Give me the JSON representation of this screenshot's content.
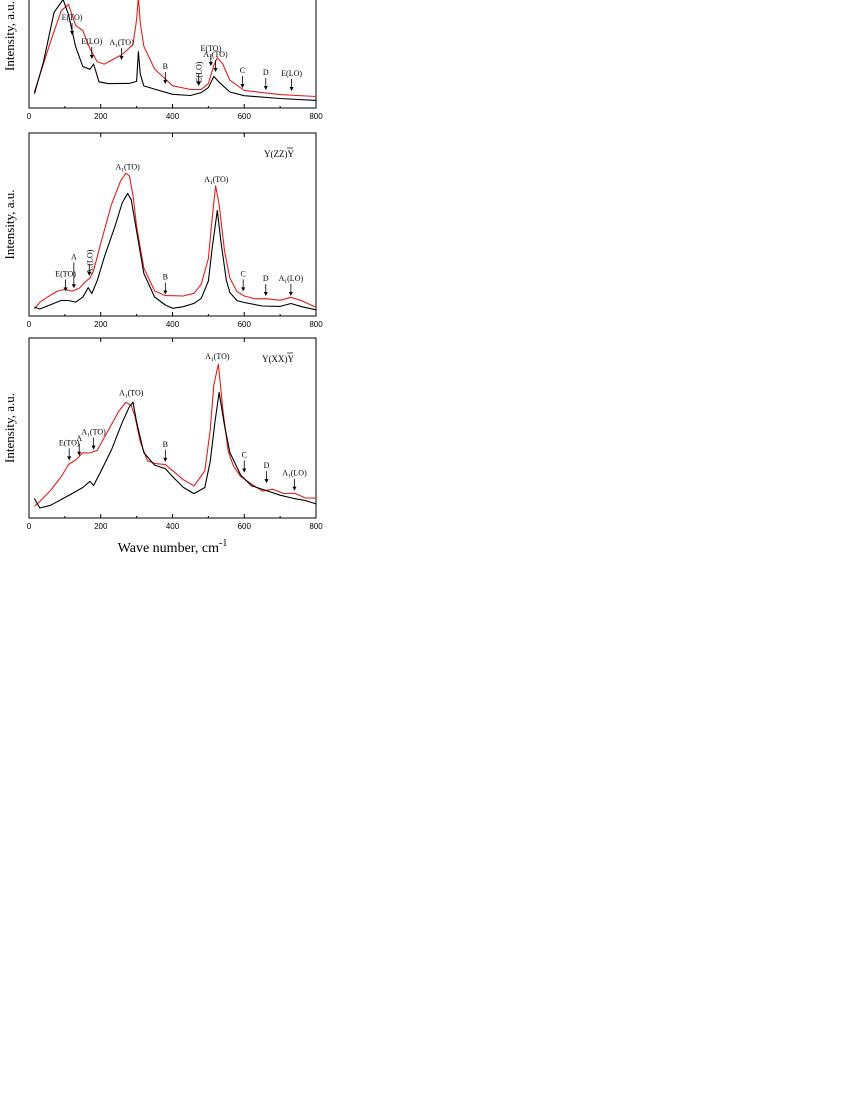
{
  "figure": {
    "xlabel_main": "Wave number, cm",
    "xlabel_sup": "-1",
    "colors": {
      "red": "#e0201f",
      "black": "#000000"
    }
  },
  "chart_data": [
    {
      "type": "line",
      "geometry": "",
      "ylabel": "Intensity, a.u.",
      "xlim": [
        0,
        800
      ],
      "xticks": [
        0,
        200,
        400,
        600,
        800
      ],
      "series": [
        {
          "color": "#e0201f",
          "x": [
            15,
            60,
            90,
            110,
            130,
            150,
            170,
            190,
            210,
            260,
            290,
            300,
            305,
            310,
            320,
            350,
            400,
            450,
            480,
            500,
            515,
            525,
            540,
            560,
            600,
            650,
            700,
            800
          ],
          "y": [
            0.12,
            0.62,
            0.93,
            0.99,
            0.78,
            0.73,
            0.55,
            0.42,
            0.4,
            0.5,
            0.6,
            0.85,
            1.08,
            0.82,
            0.58,
            0.35,
            0.18,
            0.14,
            0.14,
            0.2,
            0.38,
            0.46,
            0.4,
            0.24,
            0.14,
            0.12,
            0.1,
            0.08
          ]
        },
        {
          "color": "#000000",
          "x": [
            15,
            40,
            70,
            95,
            110,
            130,
            150,
            170,
            180,
            195,
            220,
            280,
            300,
            305,
            310,
            320,
            350,
            400,
            450,
            480,
            500,
            515,
            530,
            560,
            600,
            700,
            800
          ],
          "y": [
            0.1,
            0.42,
            0.92,
            1.05,
            0.9,
            0.58,
            0.38,
            0.35,
            0.4,
            0.22,
            0.2,
            0.2,
            0.22,
            0.52,
            0.3,
            0.18,
            0.15,
            0.1,
            0.09,
            0.12,
            0.17,
            0.28,
            0.22,
            0.12,
            0.08,
            0.05,
            0.03
          ]
        }
      ],
      "annotations": [
        {
          "text": "E(TO)",
          "x": 120,
          "arrow_y": 0.67
        },
        {
          "text": "E(LO)",
          "x": 175,
          "arrow_y": 0.43
        },
        {
          "text": "A",
          "sub": "1",
          "suffix": "(TO)",
          "x": 258,
          "arrow_y": 0.42
        },
        {
          "text": "B",
          "x": 380,
          "arrow_y": 0.18
        },
        {
          "text": "E(LO)",
          "x": 473,
          "arrow_y": 0.16,
          "vertical": true
        },
        {
          "text": "E(TO)",
          "x": 507,
          "arrow_y": 0.36
        },
        {
          "text": "A",
          "sub": "1",
          "suffix": "(TO)",
          "x": 520,
          "arrow_y": 0.3
        },
        {
          "text": "C",
          "x": 595,
          "arrow_y": 0.14
        },
        {
          "text": "D",
          "x": 660,
          "arrow_y": 0.12
        },
        {
          "text": "E(LO)",
          "x": 732,
          "arrow_y": 0.11
        }
      ]
    },
    {
      "type": "line",
      "geometry": "Y(ZZ)Y",
      "ylabel": "Intensity, a.u.",
      "xlim": [
        0,
        800
      ],
      "xticks": [
        0,
        200,
        400,
        600,
        800
      ],
      "series": [
        {
          "color": "#e0201f",
          "x": [
            15,
            30,
            50,
            80,
            100,
            120,
            140,
            160,
            170,
            180,
            200,
            230,
            255,
            270,
            280,
            290,
            300,
            320,
            350,
            380,
            400,
            430,
            460,
            480,
            500,
            510,
            520,
            530,
            545,
            560,
            580,
            600,
            630,
            660,
            700,
            730,
            760,
            800
          ],
          "y": [
            0.02,
            0.06,
            0.09,
            0.13,
            0.14,
            0.13,
            0.15,
            0.2,
            0.22,
            0.27,
            0.45,
            0.7,
            0.85,
            0.9,
            0.88,
            0.75,
            0.55,
            0.28,
            0.13,
            0.1,
            0.1,
            0.1,
            0.12,
            0.18,
            0.35,
            0.6,
            0.82,
            0.7,
            0.4,
            0.22,
            0.13,
            0.1,
            0.08,
            0.08,
            0.07,
            0.09,
            0.07,
            0.03
          ]
        },
        {
          "color": "#000000",
          "x": [
            15,
            30,
            60,
            90,
            110,
            130,
            150,
            165,
            175,
            190,
            210,
            240,
            260,
            275,
            285,
            300,
            320,
            350,
            380,
            400,
            430,
            460,
            480,
            500,
            510,
            525,
            535,
            550,
            560,
            580,
            600,
            650,
            700,
            730,
            760,
            800
          ],
          "y": [
            0.03,
            0.02,
            0.05,
            0.08,
            0.08,
            0.07,
            0.1,
            0.16,
            0.12,
            0.2,
            0.35,
            0.55,
            0.7,
            0.76,
            0.72,
            0.52,
            0.25,
            0.1,
            0.05,
            0.03,
            0.04,
            0.06,
            0.09,
            0.2,
            0.4,
            0.65,
            0.45,
            0.2,
            0.12,
            0.07,
            0.06,
            0.04,
            0.04,
            0.06,
            0.04,
            0.02
          ]
        }
      ],
      "annotations": [
        {
          "text": "A",
          "sub": "1",
          "suffix": "(TO)",
          "x": 275,
          "label_only": true,
          "label_y": 0.92
        },
        {
          "text": "A",
          "sub": "1",
          "suffix": "(TO)",
          "x": 522,
          "label_only": true,
          "label_y": 0.84
        },
        {
          "text": "E(TO)",
          "x": 102,
          "arrow_y": 0.12
        },
        {
          "text": "A",
          "x": 125,
          "arrow_y": 0.14,
          "tall": true
        },
        {
          "text": "A",
          "sub": "1",
          "suffix": "(LO)",
          "x": 168,
          "arrow_y": 0.22,
          "vertical": true
        },
        {
          "text": "B",
          "x": 380,
          "arrow_y": 0.1
        },
        {
          "text": "C",
          "x": 597,
          "arrow_y": 0.12
        },
        {
          "text": "D",
          "x": 660,
          "arrow_y": 0.09
        },
        {
          "text": "A",
          "sub": "1",
          "suffix": "(LO)",
          "x": 730,
          "arrow_y": 0.09
        }
      ]
    },
    {
      "type": "line",
      "geometry": "Y(XX)Y",
      "ylabel": "Intensity, a.u.",
      "xlim": [
        0,
        800
      ],
      "xticks": [
        0,
        200,
        400,
        600,
        800
      ],
      "series": [
        {
          "color": "#e0201f",
          "x": [
            15,
            30,
            60,
            90,
            110,
            130,
            150,
            170,
            190,
            220,
            250,
            270,
            285,
            295,
            310,
            330,
            350,
            380,
            400,
            430,
            460,
            490,
            505,
            515,
            528,
            540,
            555,
            570,
            590,
            620,
            650,
            680,
            710,
            740,
            770,
            800
          ],
          "y": [
            0.05,
            0.08,
            0.15,
            0.24,
            0.32,
            0.35,
            0.4,
            0.4,
            0.42,
            0.55,
            0.68,
            0.74,
            0.72,
            0.65,
            0.48,
            0.35,
            0.33,
            0.32,
            0.28,
            0.22,
            0.18,
            0.28,
            0.55,
            0.85,
            0.99,
            0.7,
            0.42,
            0.32,
            0.25,
            0.2,
            0.15,
            0.16,
            0.13,
            0.13,
            0.1,
            0.1
          ]
        },
        {
          "color": "#000000",
          "x": [
            15,
            30,
            60,
            90,
            120,
            150,
            170,
            180,
            200,
            230,
            260,
            280,
            290,
            300,
            320,
            350,
            380,
            400,
            430,
            460,
            490,
            505,
            518,
            530,
            545,
            560,
            590,
            620,
            660,
            700,
            740,
            770,
            800
          ],
          "y": [
            0.1,
            0.04,
            0.06,
            0.1,
            0.14,
            0.18,
            0.22,
            0.19,
            0.28,
            0.42,
            0.6,
            0.7,
            0.73,
            0.6,
            0.4,
            0.32,
            0.3,
            0.25,
            0.18,
            0.14,
            0.18,
            0.35,
            0.6,
            0.8,
            0.58,
            0.4,
            0.25,
            0.18,
            0.15,
            0.12,
            0.1,
            0.09,
            0.07
          ]
        }
      ],
      "annotations": [
        {
          "text": "A",
          "sub": "1",
          "suffix": "(TO)",
          "x": 285,
          "label_only": true,
          "label_y": 0.78
        },
        {
          "text": "A",
          "sub": "1",
          "suffix": "(TO)",
          "x": 525,
          "label_only": true,
          "label_y": 1.02
        },
        {
          "text": "E(TO)",
          "x": 112,
          "arrow_y": 0.34
        },
        {
          "text": "A",
          "x": 140,
          "arrow_y": 0.37
        },
        {
          "text": "A",
          "sub": "1",
          "suffix": "(TO)",
          "x": 180,
          "arrow_y": 0.41
        },
        {
          "text": "B",
          "x": 380,
          "arrow_y": 0.33
        },
        {
          "text": "C",
          "x": 600,
          "arrow_y": 0.26
        },
        {
          "text": "D",
          "x": 662,
          "arrow_y": 0.19
        },
        {
          "text": "A",
          "sub": "1",
          "suffix": "(LO)",
          "x": 740,
          "arrow_y": 0.14
        }
      ]
    }
  ]
}
